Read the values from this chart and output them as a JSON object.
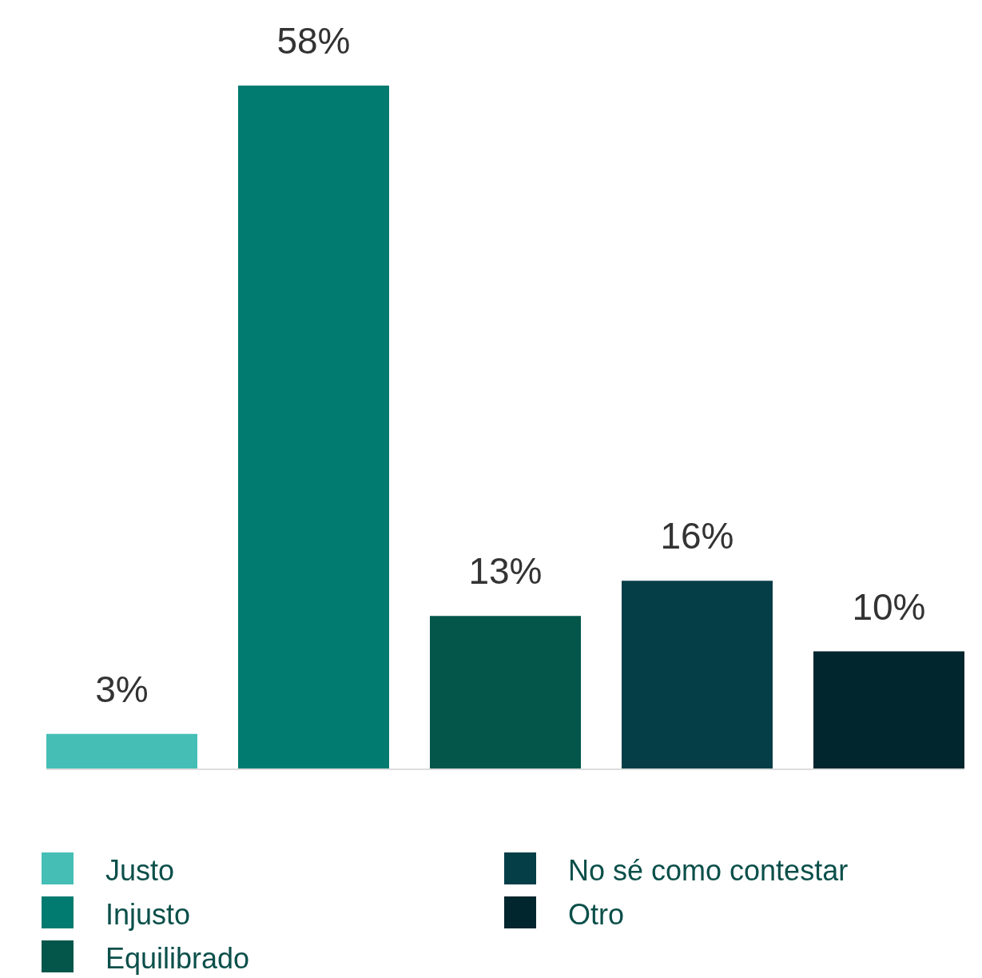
{
  "chart_data": {
    "type": "bar",
    "categories": [
      null
    ],
    "series": [
      {
        "name": "Justo",
        "color": "#45bfb5",
        "values": [
          3
        ],
        "value_labels": [
          "3%"
        ]
      },
      {
        "name": "Injusto",
        "color": "#017b6f",
        "values": [
          58
        ],
        "value_labels": [
          "58%"
        ]
      },
      {
        "name": "Equilibrado",
        "color": "#04564b",
        "values": [
          13
        ],
        "value_labels": [
          "13%"
        ]
      },
      {
        "name": "No sé como contestar",
        "color": "#063e48",
        "values": [
          16
        ],
        "value_labels": [
          "16%"
        ]
      },
      {
        "name": "Otro",
        "color": "#02262d",
        "values": [
          10
        ],
        "value_labels": [
          "10%"
        ]
      }
    ],
    "legend": "bottom",
    "grid": false
  }
}
